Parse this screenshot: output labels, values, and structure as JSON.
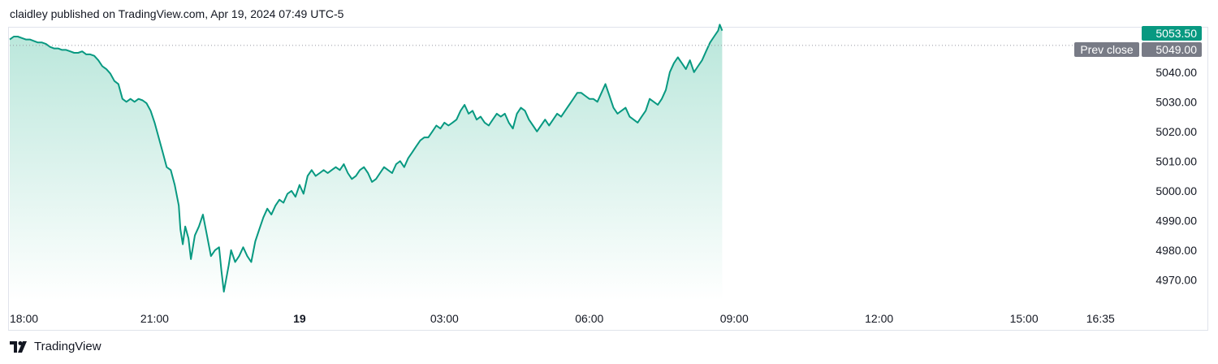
{
  "header": {
    "text": "claidley published on TradingView.com, Apr 19, 2024 07:49 UTC-5"
  },
  "footer": {
    "brand": "TradingView"
  },
  "colors": {
    "line": "#089981",
    "fill_top": "#b8e6da",
    "grid": "#e0e3eb",
    "prev_close_badge": "#787b86",
    "text": "#131722"
  },
  "chart_data": {
    "type": "area",
    "ylim": [
      4963,
      5055
    ],
    "y_ticks": [
      4970,
      4980,
      4990,
      5000,
      5010,
      5020,
      5030,
      5040
    ],
    "y_tick_labels": [
      "4970.00",
      "4980.00",
      "4990.00",
      "5000.00",
      "5010.00",
      "5020.00",
      "5030.00",
      "5040.00"
    ],
    "x_ticks": [
      {
        "label": "18:00",
        "pos": 0,
        "bold": false
      },
      {
        "label": "21:00",
        "pos": 180,
        "bold": false
      },
      {
        "label": "19",
        "pos": 360,
        "bold": true
      },
      {
        "label": "03:00",
        "pos": 540,
        "bold": false
      },
      {
        "label": "06:00",
        "pos": 720,
        "bold": false
      },
      {
        "label": "09:00",
        "pos": 900,
        "bold": false
      },
      {
        "label": "12:00",
        "pos": 1080,
        "bold": false
      },
      {
        "label": "15:00",
        "pos": 1260,
        "bold": false
      },
      {
        "label": "16:35",
        "pos": 1355,
        "bold": false
      }
    ],
    "x_domain_minutes": [
      0,
      1390
    ],
    "last_price": {
      "value": 5053.5,
      "label": "5053.50"
    },
    "prev_close": {
      "value": 5049.0,
      "label": "5049.00",
      "name": "Prev close"
    },
    "series": [
      {
        "points": [
          [
            0,
            5051
          ],
          [
            5,
            5052
          ],
          [
            10,
            5052
          ],
          [
            15,
            5051.5
          ],
          [
            20,
            5051
          ],
          [
            25,
            5051
          ],
          [
            30,
            5050.5
          ],
          [
            35,
            5050
          ],
          [
            40,
            5050
          ],
          [
            45,
            5049.5
          ],
          [
            50,
            5048.5
          ],
          [
            55,
            5048
          ],
          [
            60,
            5048
          ],
          [
            65,
            5047.5
          ],
          [
            70,
            5047.5
          ],
          [
            75,
            5047
          ],
          [
            80,
            5046.5
          ],
          [
            85,
            5046.5
          ],
          [
            90,
            5047
          ],
          [
            95,
            5046
          ],
          [
            100,
            5046
          ],
          [
            105,
            5045.5
          ],
          [
            110,
            5044
          ],
          [
            115,
            5042
          ],
          [
            120,
            5041
          ],
          [
            125,
            5039.5
          ],
          [
            130,
            5037
          ],
          [
            135,
            5036
          ],
          [
            140,
            5031
          ],
          [
            145,
            5030
          ],
          [
            150,
            5031
          ],
          [
            155,
            5030
          ],
          [
            160,
            5031
          ],
          [
            165,
            5030.5
          ],
          [
            170,
            5029.5
          ],
          [
            175,
            5027
          ],
          [
            180,
            5023
          ],
          [
            185,
            5018
          ],
          [
            190,
            5013
          ],
          [
            195,
            5008
          ],
          [
            200,
            5007
          ],
          [
            205,
            5002
          ],
          [
            210,
            4995
          ],
          [
            212,
            4987
          ],
          [
            215,
            4982
          ],
          [
            218,
            4988
          ],
          [
            222,
            4984
          ],
          [
            225,
            4977
          ],
          [
            230,
            4985
          ],
          [
            235,
            4988
          ],
          [
            240,
            4992
          ],
          [
            245,
            4985
          ],
          [
            250,
            4978
          ],
          [
            255,
            4980
          ],
          [
            260,
            4981
          ],
          [
            263,
            4973
          ],
          [
            266,
            4966
          ],
          [
            268,
            4969
          ],
          [
            272,
            4975
          ],
          [
            275,
            4980
          ],
          [
            280,
            4976
          ],
          [
            285,
            4978
          ],
          [
            290,
            4981
          ],
          [
            295,
            4978
          ],
          [
            300,
            4976
          ],
          [
            305,
            4983
          ],
          [
            310,
            4987
          ],
          [
            315,
            4991
          ],
          [
            320,
            4994
          ],
          [
            325,
            4992
          ],
          [
            330,
            4995
          ],
          [
            335,
            4997
          ],
          [
            340,
            4996
          ],
          [
            345,
            4999
          ],
          [
            350,
            5000
          ],
          [
            355,
            4998
          ],
          [
            360,
            5002
          ],
          [
            365,
            4999
          ],
          [
            370,
            5005
          ],
          [
            375,
            5007
          ],
          [
            380,
            5005
          ],
          [
            385,
            5006
          ],
          [
            390,
            5007
          ],
          [
            395,
            5006
          ],
          [
            400,
            5007
          ],
          [
            405,
            5008
          ],
          [
            410,
            5007
          ],
          [
            415,
            5009
          ],
          [
            420,
            5006
          ],
          [
            425,
            5004
          ],
          [
            430,
            5005
          ],
          [
            435,
            5007
          ],
          [
            440,
            5008
          ],
          [
            445,
            5006
          ],
          [
            450,
            5003
          ],
          [
            455,
            5004
          ],
          [
            460,
            5006
          ],
          [
            465,
            5008
          ],
          [
            470,
            5007
          ],
          [
            475,
            5006
          ],
          [
            480,
            5009
          ],
          [
            485,
            5010
          ],
          [
            490,
            5008
          ],
          [
            495,
            5011
          ],
          [
            500,
            5013
          ],
          [
            505,
            5015
          ],
          [
            510,
            5017
          ],
          [
            515,
            5018
          ],
          [
            520,
            5018
          ],
          [
            525,
            5020
          ],
          [
            530,
            5022
          ],
          [
            535,
            5021
          ],
          [
            540,
            5023
          ],
          [
            545,
            5022
          ],
          [
            550,
            5023
          ],
          [
            555,
            5024
          ],
          [
            560,
            5027
          ],
          [
            565,
            5029
          ],
          [
            570,
            5026
          ],
          [
            575,
            5027
          ],
          [
            580,
            5024
          ],
          [
            585,
            5025
          ],
          [
            590,
            5023
          ],
          [
            595,
            5022
          ],
          [
            600,
            5024
          ],
          [
            605,
            5026
          ],
          [
            610,
            5025
          ],
          [
            615,
            5026
          ],
          [
            620,
            5023
          ],
          [
            625,
            5021
          ],
          [
            630,
            5026
          ],
          [
            635,
            5028
          ],
          [
            640,
            5027
          ],
          [
            645,
            5024
          ],
          [
            650,
            5022
          ],
          [
            655,
            5020
          ],
          [
            660,
            5022
          ],
          [
            665,
            5024
          ],
          [
            670,
            5022
          ],
          [
            675,
            5024
          ],
          [
            680,
            5026
          ],
          [
            685,
            5025
          ],
          [
            690,
            5027
          ],
          [
            695,
            5029
          ],
          [
            700,
            5031
          ],
          [
            705,
            5033
          ],
          [
            710,
            5033
          ],
          [
            715,
            5032
          ],
          [
            720,
            5031
          ],
          [
            725,
            5031
          ],
          [
            730,
            5030
          ],
          [
            735,
            5033
          ],
          [
            740,
            5036
          ],
          [
            745,
            5032
          ],
          [
            750,
            5028
          ],
          [
            755,
            5026
          ],
          [
            760,
            5027
          ],
          [
            765,
            5028
          ],
          [
            770,
            5025
          ],
          [
            775,
            5024
          ],
          [
            780,
            5023
          ],
          [
            785,
            5025
          ],
          [
            790,
            5027
          ],
          [
            795,
            5031
          ],
          [
            800,
            5030
          ],
          [
            805,
            5029
          ],
          [
            810,
            5031
          ],
          [
            815,
            5034
          ],
          [
            820,
            5040
          ],
          [
            825,
            5043
          ],
          [
            830,
            5045
          ],
          [
            835,
            5043
          ],
          [
            840,
            5041
          ],
          [
            845,
            5044
          ],
          [
            850,
            5040
          ],
          [
            855,
            5042
          ],
          [
            860,
            5044
          ],
          [
            865,
            5047
          ],
          [
            870,
            5050
          ],
          [
            875,
            5052
          ],
          [
            880,
            5054
          ],
          [
            882,
            5056
          ],
          [
            885,
            5054
          ]
        ]
      }
    ]
  }
}
